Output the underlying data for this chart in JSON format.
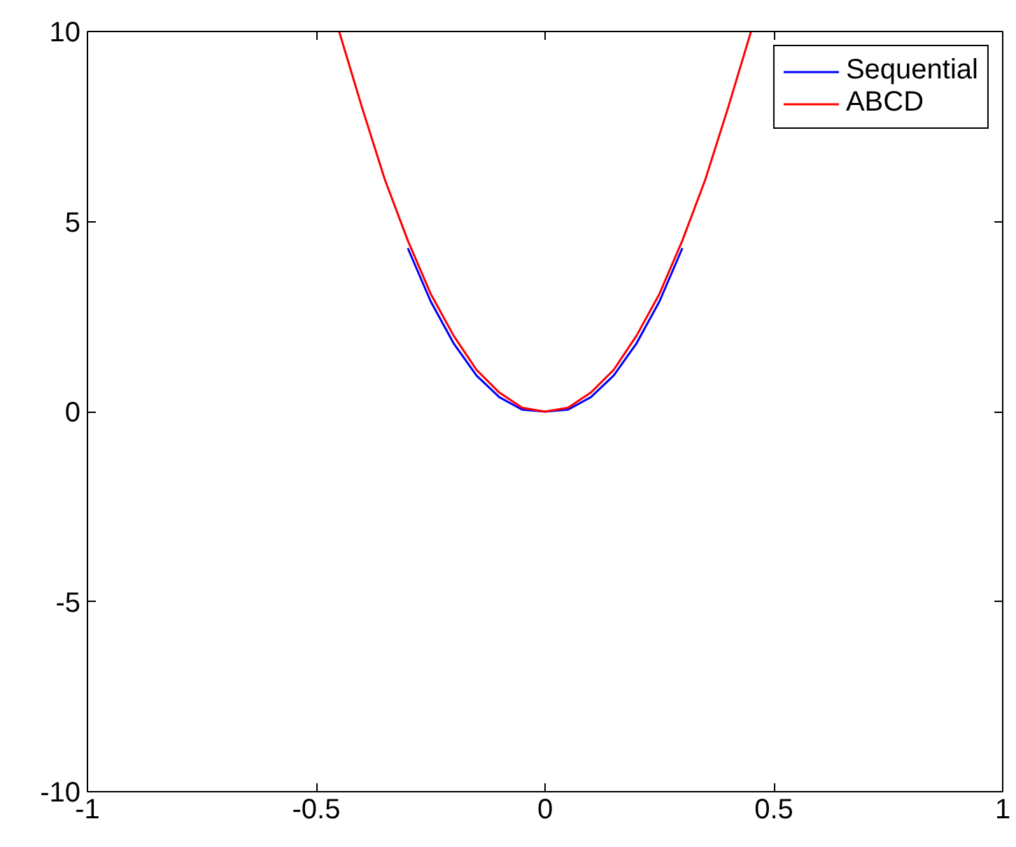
{
  "chart_data": {
    "type": "line",
    "x": [
      -0.45,
      -0.4,
      -0.35,
      -0.3,
      -0.25,
      -0.2,
      -0.15,
      -0.1,
      -0.05,
      0,
      0.05,
      0.1,
      0.15,
      0.2,
      0.25,
      0.3,
      0.35,
      0.4,
      0.45
    ],
    "series": [
      {
        "name": "Sequential",
        "color": "#0000ff",
        "x": [
          -0.3,
          -0.25,
          -0.2,
          -0.15,
          -0.1,
          -0.05,
          0,
          0.05,
          0.1,
          0.15,
          0.2,
          0.25,
          0.3
        ],
        "values": [
          4.3,
          2.9,
          1.8,
          0.95,
          0.38,
          0.05,
          0,
          0.05,
          0.38,
          0.95,
          1.8,
          2.9,
          4.3
        ]
      },
      {
        "name": "ABCD",
        "color": "#ff0000",
        "values": [
          10,
          8,
          6.1,
          4.5,
          3.1,
          2,
          1.1,
          0.5,
          0.1,
          0,
          0.1,
          0.5,
          1.1,
          2,
          3.1,
          4.5,
          6.1,
          8,
          10
        ]
      }
    ],
    "xlim": [
      -1,
      1
    ],
    "ylim": [
      -10,
      10
    ],
    "xticks": [
      -1,
      -0.5,
      0,
      0.5,
      1
    ],
    "yticks": [
      -10,
      -5,
      0,
      5,
      10
    ],
    "grid": false,
    "legend": "top right",
    "line_style": "solid"
  }
}
